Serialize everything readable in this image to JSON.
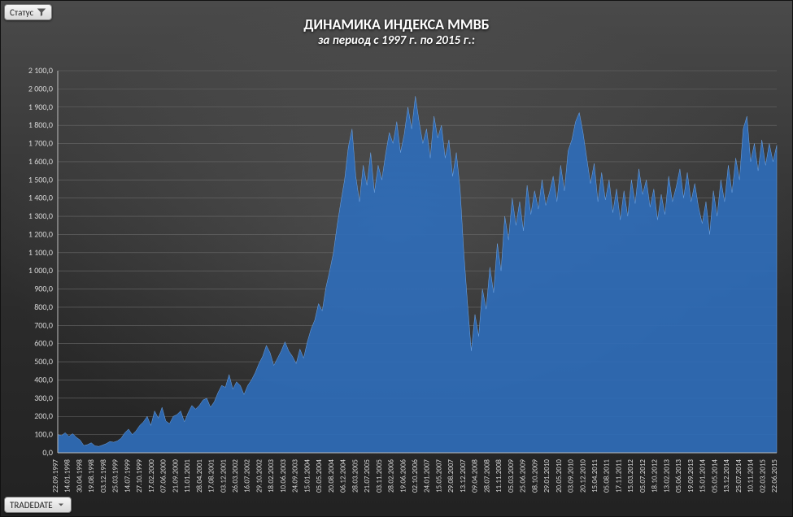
{
  "buttons": {
    "status_label": "Статус",
    "tradedate_label": "TRADEDATE"
  },
  "title": "ДИНАМИКА ИНДЕКСА ММВБ",
  "subtitle": "за период с 1997 г. по 2015 г.:",
  "title_fontsize": 18,
  "subtitle_fontsize": 15,
  "chart": {
    "type": "area",
    "background": "radial-dark-gray",
    "series_fill": "#2f6db8",
    "series_stroke": "#6fa6e8",
    "grid_color": "#6a6a6a",
    "axis_color": "#bfbfbf",
    "tick_text_color": "#d8d8d8",
    "ylim": [
      0,
      2100
    ],
    "ytick_step": 100,
    "ytick_format": "#,##0.0_ru",
    "yticks_labels": [
      "0,0",
      "100,0",
      "200,0",
      "300,0",
      "400,0",
      "500,0",
      "600,0",
      "700,0",
      "800,0",
      "900,0",
      "1 000,0",
      "1 100,0",
      "1 200,0",
      "1 300,0",
      "1 400,0",
      "1 500,0",
      "1 600,0",
      "1 700,0",
      "1 800,0",
      "1 900,0",
      "2 000,0",
      "2 100,0"
    ],
    "x_labels": [
      "22.09.1997",
      "14.01.1998",
      "30.04.1998",
      "19.08.1998",
      "03.12.1998",
      "25.03.1999",
      "14.07.1999",
      "27.10.1999",
      "17.02.2000",
      "07.06.2000",
      "21.09.2000",
      "11.01.2001",
      "28.04.2001",
      "17.08.2001",
      "03.12.2001",
      "26.03.2002",
      "16.07.2002",
      "29.10.2002",
      "18.02.2003",
      "10.06.2003",
      "24.09.2003",
      "15.01.2004",
      "05.05.2004",
      "20.08.2004",
      "06.12.2004",
      "28.03.2005",
      "21.07.2005",
      "03.11.2005",
      "28.02.2006",
      "19.06.2006",
      "02.10.2006",
      "24.01.2007",
      "15.05.2007",
      "29.08.2007",
      "13.12.2007",
      "09.04.2008",
      "28.07.2008",
      "11.11.2008",
      "05.03.2009",
      "25.06.2009",
      "08.10.2009",
      "29.01.2010",
      "20.05.2010",
      "03.09.2010",
      "20.12.2010",
      "15.04.2011",
      "05.08.2011",
      "17.11.2011",
      "15.03.2012",
      "05.07.2012",
      "18.10.2012",
      "13.02.2013",
      "05.06.2013",
      "19.09.2013",
      "15.01.2014",
      "05.05.2014",
      "13.12.2014",
      "25.07.2014",
      "10.11.2014",
      "02.03.2015",
      "22.06.2015"
    ],
    "values": [
      100,
      95,
      110,
      90,
      105,
      85,
      70,
      40,
      45,
      55,
      38,
      35,
      42,
      50,
      62,
      58,
      65,
      80,
      110,
      130,
      100,
      120,
      150,
      170,
      200,
      150,
      230,
      190,
      250,
      175,
      160,
      200,
      210,
      230,
      170,
      220,
      260,
      240,
      260,
      290,
      300,
      250,
      280,
      330,
      370,
      360,
      430,
      350,
      390,
      370,
      320,
      370,
      400,
      440,
      490,
      530,
      590,
      550,
      480,
      520,
      560,
      610,
      560,
      530,
      490,
      570,
      520,
      610,
      680,
      730,
      820,
      780,
      910,
      1000,
      1100,
      1250,
      1380,
      1500,
      1680,
      1780,
      1520,
      1380,
      1580,
      1470,
      1650,
      1430,
      1580,
      1500,
      1640,
      1760,
      1700,
      1820,
      1650,
      1750,
      1900,
      1780,
      1960,
      1820,
      1700,
      1780,
      1620,
      1850,
      1730,
      1800,
      1620,
      1720,
      1520,
      1650,
      1450,
      1100,
      820,
      560,
      760,
      640,
      900,
      790,
      1020,
      880,
      1150,
      1000,
      1300,
      1170,
      1400,
      1250,
      1380,
      1220,
      1470,
      1310,
      1440,
      1340,
      1500,
      1360,
      1430,
      1520,
      1380,
      1580,
      1440,
      1660,
      1720,
      1820,
      1870,
      1760,
      1620,
      1480,
      1590,
      1380,
      1540,
      1390,
      1500,
      1320,
      1450,
      1280,
      1440,
      1300,
      1500,
      1370,
      1560,
      1420,
      1500,
      1350,
      1450,
      1280,
      1420,
      1310,
      1520,
      1380,
      1460,
      1560,
      1400,
      1540,
      1380,
      1480,
      1350,
      1260,
      1380,
      1200,
      1440,
      1300,
      1500,
      1380,
      1580,
      1430,
      1620,
      1500,
      1780,
      1850,
      1600,
      1700,
      1550,
      1720,
      1580,
      1700,
      1600,
      1690
    ]
  }
}
